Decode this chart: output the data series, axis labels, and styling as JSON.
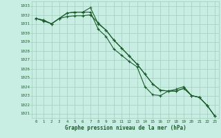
{
  "title": "Graphe pression niveau de la mer (hPa)",
  "background_color": "#c8eee4",
  "grid_color": "#a0ccbb",
  "line_color": "#1a5c28",
  "marker": "+",
  "x_labels": [
    "0",
    "1",
    "2",
    "3",
    "4",
    "5",
    "6",
    "7",
    "8",
    "9",
    "10",
    "11",
    "12",
    "13",
    "14",
    "15",
    "16",
    "17",
    "18",
    "19",
    "20",
    "21",
    "22",
    "23"
  ],
  "xlim": [
    -0.5,
    23.5
  ],
  "ylim": [
    1020.5,
    1033.5
  ],
  "yticks": [
    1021,
    1022,
    1023,
    1024,
    1025,
    1026,
    1027,
    1028,
    1029,
    1030,
    1031,
    1032,
    1033
  ],
  "series": [
    [
      1031.6,
      1031.4,
      1031.0,
      1031.6,
      1032.2,
      1032.3,
      1032.3,
      1032.3,
      1030.4,
      1029.6,
      1028.2,
      1027.5,
      1026.8,
      1026.2,
      1024.0,
      1023.1,
      1023.0,
      1023.5,
      1023.7,
      1024.0,
      1023.0,
      1022.8,
      1021.9,
      1020.7
    ],
    [
      1031.6,
      1031.4,
      1031.0,
      1031.6,
      1032.2,
      1032.3,
      1032.3,
      1032.8,
      1031.0,
      1030.3,
      1029.2,
      1028.3,
      1027.4,
      1026.5,
      1025.4,
      1024.3,
      1023.6,
      1023.5,
      1023.5,
      1023.8,
      1023.0,
      1022.8,
      1021.9,
      1020.7
    ],
    [
      1031.6,
      1031.3,
      1031.0,
      1031.6,
      1031.8,
      1031.9,
      1031.9,
      1032.0,
      1031.1,
      1030.3,
      1029.2,
      1028.3,
      1027.4,
      1026.5,
      1025.4,
      1024.3,
      1023.6,
      1023.5,
      1023.5,
      1023.8,
      1023.0,
      1022.8,
      1021.9,
      1020.7
    ]
  ]
}
